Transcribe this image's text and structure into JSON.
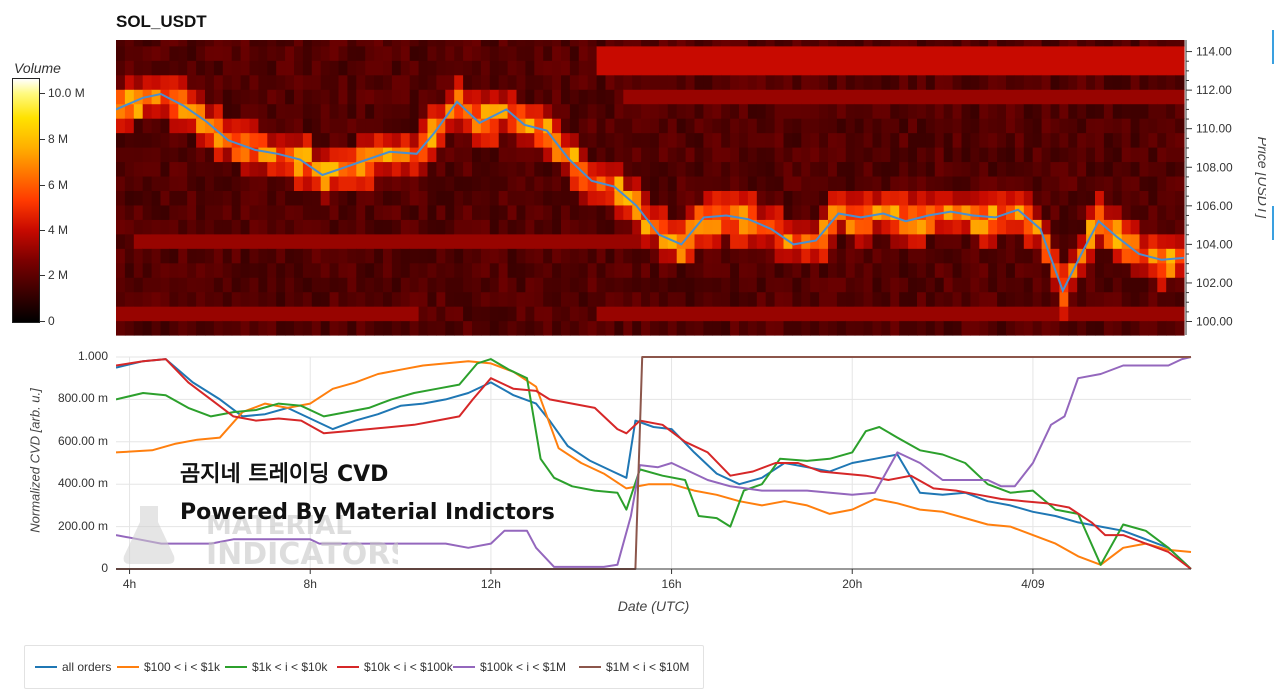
{
  "title": "SOL_USDT",
  "volume_colorbar": {
    "label": "Volume",
    "ticks": [
      "10.0 M",
      "8 M",
      "6 M",
      "4 M",
      "2 M",
      "0"
    ]
  },
  "overlay": {
    "line1": "곰지네 트레이딩 CVD",
    "line2": "Powered By Material Indictors"
  },
  "watermark": {
    "line1": "MATERIAL",
    "line2": "INDICATORS"
  },
  "chart_data": [
    {
      "type": "heatmap",
      "title": "SOL_USDT",
      "ylabel": "Price [USDT]",
      "ylim": [
        99.3,
        114.6
      ],
      "y_ticks": [
        "114.00",
        "112.00",
        "110.00",
        "108.00",
        "106.00",
        "104.00",
        "102.00",
        "100.00"
      ],
      "y_tick_values": [
        114,
        112,
        110,
        108,
        106,
        104,
        102,
        100
      ],
      "x_range_hours": [
        3.7,
        27.5
      ],
      "colorbar_max_M": 11,
      "price_series": {
        "name": "price",
        "x_hours": [
          3.7,
          4.3,
          4.7,
          5.2,
          5.7,
          6.2,
          6.8,
          7.3,
          7.8,
          8.3,
          8.8,
          9.3,
          9.8,
          10.4,
          10.8,
          11.3,
          11.8,
          12.4,
          12.8,
          13.3,
          13.8,
          14.3,
          14.8,
          15.3,
          15.8,
          16.3,
          16.8,
          17.3,
          17.8,
          18.3,
          18.8,
          19.3,
          19.8,
          20.3,
          20.8,
          21.3,
          21.8,
          22.3,
          22.8,
          23.3,
          23.8,
          24.3,
          24.8,
          25.3,
          25.6,
          26.0,
          26.5,
          27.0,
          27.5
        ],
        "y": [
          111.0,
          111.6,
          111.8,
          111.2,
          110.4,
          109.4,
          108.9,
          108.7,
          108.4,
          107.6,
          108.0,
          108.4,
          108.8,
          108.7,
          109.8,
          111.4,
          110.3,
          111.0,
          110.2,
          109.9,
          108.4,
          107.3,
          107.0,
          106.0,
          104.5,
          104.0,
          105.4,
          105.5,
          105.3,
          104.8,
          104.0,
          104.2,
          105.6,
          105.4,
          105.6,
          105.2,
          105.5,
          105.7,
          105.5,
          105.4,
          105.8,
          104.8,
          101.6,
          103.9,
          105.2,
          104.4,
          103.5,
          103.2,
          103.3
        ]
      }
    },
    {
      "type": "line",
      "xlabel": "Date (UTC)",
      "ylabel": "Normalized CVD [arb. u.]",
      "ylim": [
        0,
        1.0
      ],
      "y_ticks": [
        "0",
        "200.00 m",
        "400.00 m",
        "600.00 m",
        "800.00 m",
        "1.000"
      ],
      "y_tick_values": [
        0,
        0.2,
        0.4,
        0.6,
        0.8,
        1.0
      ],
      "x_ticks": [
        "4h",
        "8h",
        "12h",
        "16h",
        "20h",
        "4/09"
      ],
      "x_tick_values": [
        4,
        8,
        12,
        16,
        20,
        24
      ],
      "x_range_hours": [
        3.7,
        27.5
      ],
      "series": [
        {
          "name": "all orders",
          "color": "#1f77b4",
          "x": [
            3.7,
            4.3,
            4.8,
            5.4,
            6.0,
            6.5,
            7.0,
            7.5,
            8.0,
            8.5,
            9.0,
            9.5,
            10.0,
            10.5,
            11.0,
            11.5,
            12.0,
            12.5,
            13.0,
            13.3,
            13.7,
            14.2,
            14.7,
            15.0,
            15.2,
            15.6,
            16.0,
            16.5,
            17.0,
            17.5,
            18.0,
            18.5,
            19.0,
            19.5,
            20.0,
            20.5,
            21.0,
            21.5,
            22.0,
            22.5,
            23.0,
            23.5,
            24.0,
            24.5,
            25.0,
            25.5,
            26.0,
            26.5,
            27.0,
            27.5
          ],
          "y": [
            0.95,
            0.98,
            0.99,
            0.88,
            0.8,
            0.72,
            0.73,
            0.76,
            0.71,
            0.66,
            0.7,
            0.73,
            0.77,
            0.78,
            0.8,
            0.83,
            0.88,
            0.82,
            0.78,
            0.7,
            0.58,
            0.51,
            0.46,
            0.43,
            0.7,
            0.67,
            0.66,
            0.55,
            0.45,
            0.4,
            0.43,
            0.5,
            0.48,
            0.46,
            0.5,
            0.52,
            0.54,
            0.36,
            0.35,
            0.36,
            0.32,
            0.3,
            0.27,
            0.25,
            0.22,
            0.2,
            0.18,
            0.14,
            0.1,
            0.0
          ]
        },
        {
          "name": "$100 < i < $1k",
          "color": "#ff7f0e",
          "x": [
            3.7,
            4.5,
            5.0,
            5.5,
            6.0,
            6.5,
            7.0,
            7.5,
            8.0,
            8.5,
            9.0,
            9.5,
            10.0,
            10.5,
            11.0,
            11.5,
            12.0,
            12.5,
            13.0,
            13.5,
            14.0,
            14.5,
            15.0,
            15.5,
            16.0,
            16.5,
            17.0,
            17.5,
            18.0,
            18.5,
            19.0,
            19.5,
            20.0,
            20.5,
            21.0,
            21.5,
            22.0,
            22.5,
            23.0,
            23.5,
            24.0,
            24.5,
            25.0,
            25.5,
            26.0,
            26.5,
            27.0,
            27.5
          ],
          "y": [
            0.55,
            0.56,
            0.59,
            0.61,
            0.62,
            0.74,
            0.78,
            0.76,
            0.78,
            0.85,
            0.88,
            0.92,
            0.94,
            0.96,
            0.97,
            0.98,
            0.97,
            0.93,
            0.86,
            0.57,
            0.5,
            0.45,
            0.38,
            0.4,
            0.4,
            0.37,
            0.35,
            0.32,
            0.3,
            0.32,
            0.3,
            0.26,
            0.28,
            0.33,
            0.31,
            0.28,
            0.27,
            0.24,
            0.21,
            0.2,
            0.16,
            0.12,
            0.06,
            0.02,
            0.1,
            0.12,
            0.09,
            0.08
          ]
        },
        {
          "name": "$1k < i < $10k",
          "color": "#2ca02c",
          "x": [
            3.7,
            4.3,
            4.8,
            5.3,
            5.8,
            6.3,
            6.8,
            7.3,
            7.8,
            8.3,
            8.8,
            9.3,
            9.8,
            10.3,
            10.8,
            11.3,
            11.7,
            12.0,
            12.4,
            12.8,
            13.1,
            13.4,
            13.8,
            14.3,
            14.8,
            15.0,
            15.3,
            15.8,
            16.3,
            16.6,
            17.0,
            17.3,
            17.6,
            18.0,
            18.4,
            19.0,
            19.5,
            20.0,
            20.3,
            20.6,
            21.0,
            21.5,
            22.0,
            22.5,
            23.0,
            23.5,
            24.0,
            24.5,
            25.0,
            25.5,
            26.0,
            26.5,
            27.0,
            27.5
          ],
          "y": [
            0.8,
            0.83,
            0.82,
            0.76,
            0.72,
            0.74,
            0.75,
            0.78,
            0.77,
            0.72,
            0.74,
            0.76,
            0.8,
            0.83,
            0.85,
            0.87,
            0.97,
            0.99,
            0.94,
            0.9,
            0.52,
            0.43,
            0.39,
            0.37,
            0.36,
            0.28,
            0.47,
            0.44,
            0.42,
            0.25,
            0.24,
            0.2,
            0.37,
            0.4,
            0.52,
            0.51,
            0.52,
            0.55,
            0.65,
            0.67,
            0.62,
            0.56,
            0.54,
            0.5,
            0.4,
            0.36,
            0.37,
            0.28,
            0.26,
            0.02,
            0.21,
            0.18,
            0.1,
            0.0
          ]
        },
        {
          "name": "$10k < i < $100k",
          "color": "#d62728",
          "x": [
            3.7,
            4.3,
            4.8,
            5.3,
            5.8,
            6.3,
            6.8,
            7.3,
            7.8,
            8.3,
            8.8,
            9.3,
            9.8,
            10.3,
            10.8,
            11.3,
            11.6,
            12.0,
            12.5,
            13.0,
            13.3,
            13.8,
            14.3,
            14.8,
            15.0,
            15.3,
            15.8,
            16.3,
            16.8,
            17.3,
            17.8,
            18.3,
            18.8,
            19.3,
            19.8,
            20.3,
            20.8,
            21.3,
            21.8,
            22.3,
            22.8,
            23.3,
            23.8,
            24.3,
            24.8,
            25.3,
            25.6,
            26.0,
            26.5,
            27.0,
            27.5
          ],
          "y": [
            0.96,
            0.98,
            0.99,
            0.88,
            0.8,
            0.72,
            0.7,
            0.71,
            0.7,
            0.64,
            0.65,
            0.66,
            0.67,
            0.68,
            0.7,
            0.72,
            0.8,
            0.9,
            0.85,
            0.84,
            0.8,
            0.78,
            0.76,
            0.66,
            0.64,
            0.7,
            0.68,
            0.6,
            0.55,
            0.44,
            0.46,
            0.5,
            0.5,
            0.46,
            0.45,
            0.44,
            0.42,
            0.44,
            0.38,
            0.37,
            0.35,
            0.33,
            0.32,
            0.31,
            0.29,
            0.22,
            0.16,
            0.16,
            0.12,
            0.08,
            0.0
          ]
        },
        {
          "name": "$100k < i < $1M",
          "color": "#9467bd",
          "x": [
            3.7,
            4.2,
            4.7,
            5.2,
            5.8,
            6.3,
            7.0,
            8.0,
            8.2,
            9.0,
            10.0,
            11.0,
            11.5,
            12.0,
            12.3,
            12.8,
            13.0,
            13.4,
            14.0,
            14.5,
            14.8,
            15.1,
            15.3,
            15.7,
            16.0,
            16.3,
            16.8,
            17.3,
            18.0,
            19.0,
            20.0,
            20.5,
            21.0,
            21.5,
            22.0,
            23.0,
            23.3,
            23.6,
            24.0,
            24.4,
            24.7,
            25.0,
            25.5,
            26.0,
            26.5,
            27.0,
            27.3,
            27.5
          ],
          "y": [
            0.16,
            0.14,
            0.12,
            0.12,
            0.12,
            0.14,
            0.14,
            0.14,
            0.12,
            0.12,
            0.12,
            0.12,
            0.1,
            0.12,
            0.18,
            0.18,
            0.1,
            0.01,
            0.01,
            0.01,
            0.02,
            0.25,
            0.49,
            0.48,
            0.5,
            0.47,
            0.42,
            0.39,
            0.37,
            0.37,
            0.35,
            0.36,
            0.55,
            0.5,
            0.42,
            0.42,
            0.39,
            0.39,
            0.5,
            0.68,
            0.72,
            0.9,
            0.92,
            0.96,
            0.96,
            0.96,
            0.99,
            1.0
          ]
        },
        {
          "name": "$1M < i < $10M",
          "color": "#8c564b",
          "x": [
            3.7,
            15.2,
            15.35,
            27.5
          ],
          "y": [
            0.0,
            0.0,
            1.0,
            1.0
          ]
        }
      ]
    }
  ]
}
